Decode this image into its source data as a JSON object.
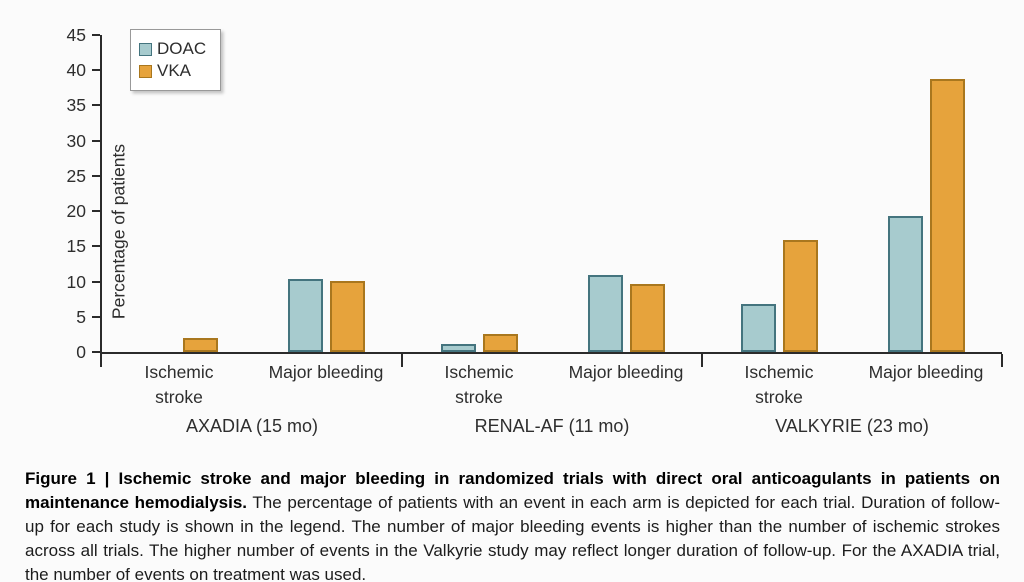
{
  "page": {
    "background": "#fbfbfb"
  },
  "figure": {
    "ylabel": "Percentage of patients",
    "caption": {
      "bold": "Figure 1 | Ischemic stroke and major bleeding in randomized trials with direct oral anticoagulants in patients on maintenance hemodialysis.",
      "regular": " The percentage of patients with an event in each arm is depicted for each trial. Duration of follow-up for each study is shown in the legend. The number of major bleeding events is higher than the number of ischemic strokes across all trials. The higher number of events in the Valkyrie study may reflect longer duration of follow-up. For the AXADIA trial, the number of events on treatment was used."
    }
  },
  "chart_data": {
    "type": "bar",
    "title": "",
    "xlabel": "",
    "ylabel": "Percentage of patients",
    "ylim": [
      0,
      45
    ],
    "yticks": [
      0,
      5,
      10,
      15,
      20,
      25,
      30,
      35,
      40,
      45
    ],
    "grid": false,
    "legend_position": "top-left",
    "legend": [
      {
        "name": "DOAC",
        "fill": "#a7cbce",
        "border": "#44747e"
      },
      {
        "name": "VKA",
        "fill": "#e6a33c",
        "border": "#a9771e"
      }
    ],
    "groups": [
      {
        "label": "AXADIA (15 mo)",
        "categories": [
          "Ischemic stroke",
          "Major bleeding"
        ],
        "series": [
          {
            "name": "DOAC",
            "values": [
              0,
              10.3
            ]
          },
          {
            "name": "VKA",
            "values": [
              2.0,
              10.1
            ]
          }
        ]
      },
      {
        "label": "RENAL-AF (11 mo)",
        "categories": [
          "Ischemic stroke",
          "Major bleeding"
        ],
        "series": [
          {
            "name": "DOAC",
            "values": [
              1.2,
              11.0
            ]
          },
          {
            "name": "VKA",
            "values": [
              2.6,
              9.6
            ]
          }
        ]
      },
      {
        "label": "VALKYRIE (23 mo)",
        "categories": [
          "Ischemic stroke",
          "Major bleeding"
        ],
        "series": [
          {
            "name": "DOAC",
            "values": [
              6.8,
              19.3
            ]
          },
          {
            "name": "VKA",
            "values": [
              15.9,
              38.7
            ]
          }
        ]
      }
    ]
  }
}
